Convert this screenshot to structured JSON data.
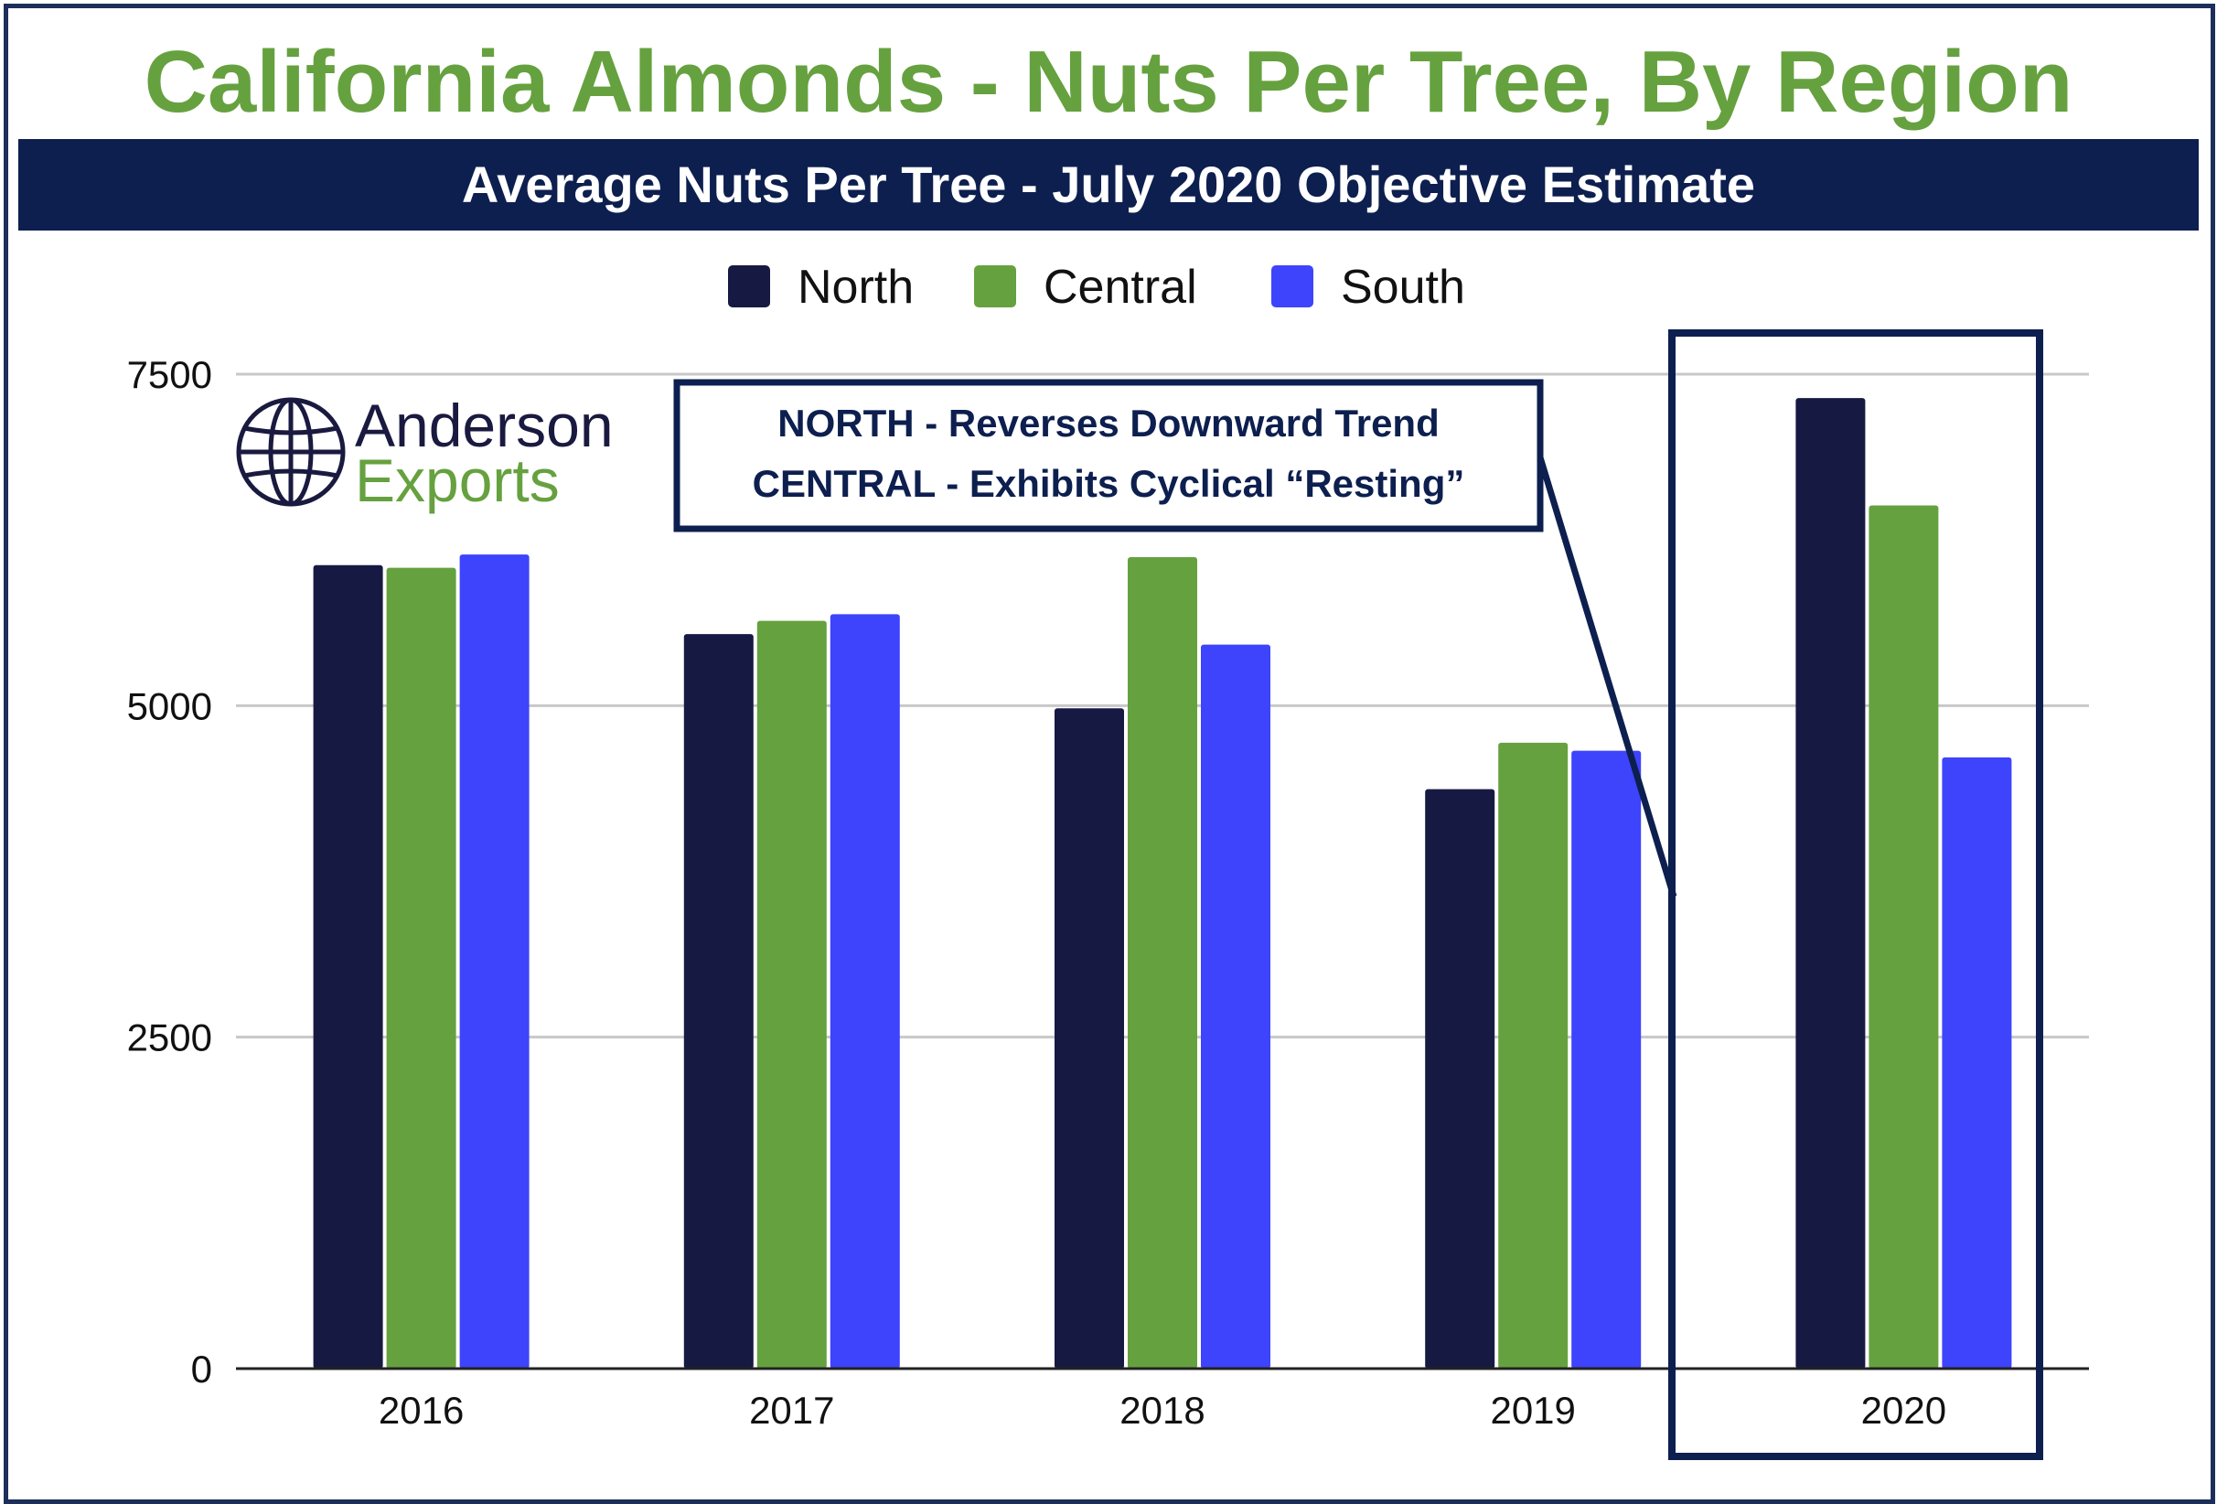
{
  "header": {
    "title": "California Almonds - Nuts Per Tree, By Region",
    "subtitle": "Average Nuts Per Tree - July 2020 Objective Estimate"
  },
  "logo": {
    "line1": "Anderson",
    "line2": "Exports",
    "line1_color": "#1a1a40",
    "line2_color": "#66a13f"
  },
  "annotation": {
    "line1": "NORTH - Reverses Downward Trend",
    "line2": "CENTRAL - Exhibits Cyclical “Resting”",
    "highlight_category": "2020"
  },
  "colors": {
    "title": "#66a13f",
    "band": "#0d1f4f",
    "north": "#161a42",
    "central": "#66a13f",
    "south": "#3e44fb",
    "frame": "#1c2e5a"
  },
  "chart_data": {
    "type": "bar",
    "title": "Average Nuts Per Tree - July 2020 Objective Estimate",
    "xlabel": "",
    "ylabel": "",
    "categories": [
      "2016",
      "2017",
      "2018",
      "2019",
      "2020"
    ],
    "series": [
      {
        "name": "North",
        "color": "#161a42",
        "values": [
          6060,
          5540,
          4980,
          4370,
          7320
        ]
      },
      {
        "name": "Central",
        "color": "#66a13f",
        "values": [
          6040,
          5640,
          6120,
          4720,
          6510
        ]
      },
      {
        "name": "South",
        "color": "#3e44fb",
        "values": [
          6140,
          5690,
          5460,
          4660,
          4610
        ]
      }
    ],
    "yticks": [
      "0",
      "2500",
      "5000",
      "7500"
    ],
    "ylim": [
      0,
      7500
    ],
    "grid": true,
    "legend": "top-center"
  }
}
